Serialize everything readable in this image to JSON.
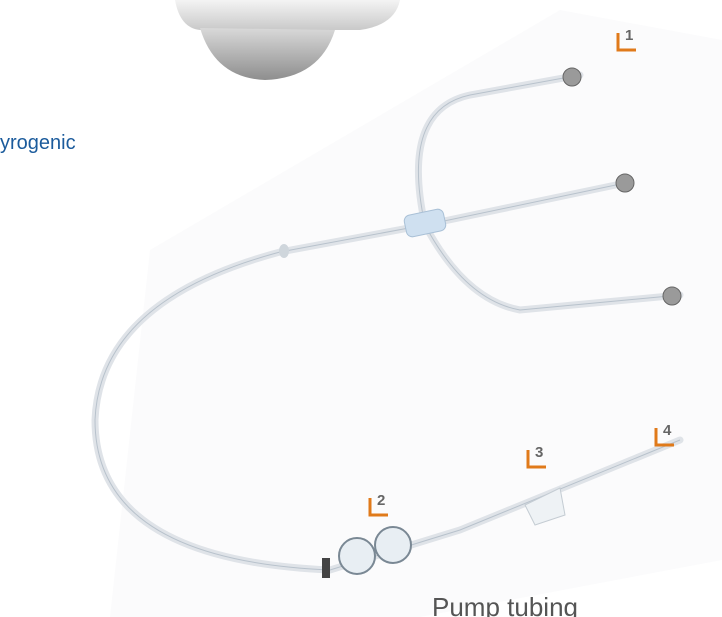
{
  "intro_text": "yrogenic",
  "callouts": [
    "1",
    "2",
    "3",
    "4"
  ],
  "caption": "Pump tubing"
}
